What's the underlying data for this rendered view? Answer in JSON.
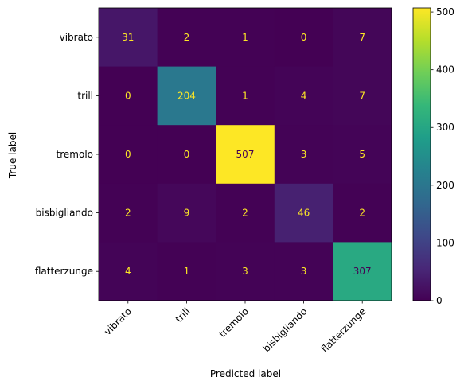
{
  "chart_data": {
    "type": "heatmap",
    "title": "",
    "xlabel": "Predicted label",
    "ylabel": "True label",
    "x_categories": [
      "vibrato",
      "trill",
      "tremolo",
      "bisbigliando",
      "flatterzunge"
    ],
    "y_categories": [
      "vibrato",
      "trill",
      "tremolo",
      "bisbigliando",
      "flatterzunge"
    ],
    "matrix": [
      [
        31,
        2,
        1,
        0,
        7
      ],
      [
        0,
        204,
        1,
        4,
        7
      ],
      [
        0,
        0,
        507,
        3,
        5
      ],
      [
        2,
        9,
        2,
        46,
        2
      ],
      [
        4,
        1,
        3,
        3,
        307
      ]
    ],
    "colorbar": {
      "colormap": "viridis",
      "min": 0,
      "max": 507,
      "ticks": [
        0,
        100,
        200,
        300,
        400,
        500
      ],
      "tick_labels": [
        "0",
        "100",
        "200",
        "300",
        "400",
        "500"
      ]
    },
    "text_colors": {
      "light": "#fde725",
      "dark": "#440154"
    },
    "x_tick_rotation_deg": 45,
    "grid": false
  }
}
